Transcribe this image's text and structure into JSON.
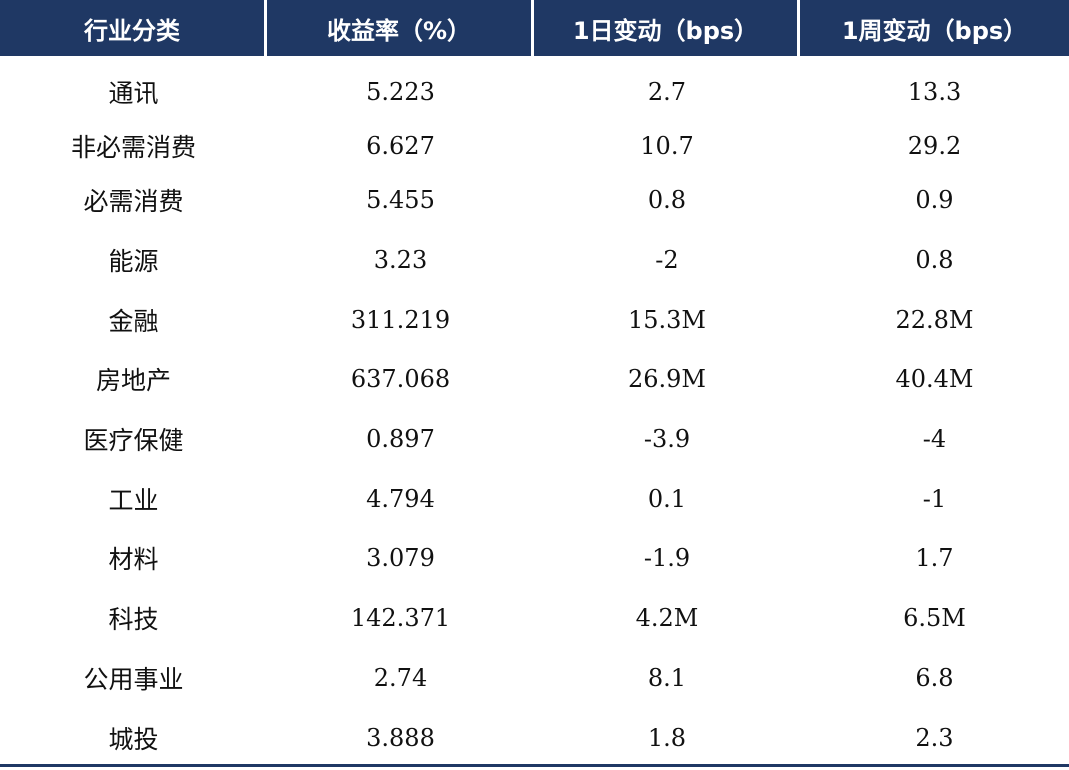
{
  "chart_data": {
    "type": "table",
    "columns": [
      "行业分类",
      "收益率（%）",
      "1日变动（bps）",
      "1周变动（bps）"
    ],
    "rows": [
      [
        "通讯",
        "5.223",
        "2.7",
        "13.3"
      ],
      [
        "非必需消费",
        "6.627",
        "10.7",
        "29.2"
      ],
      [
        "必需消费",
        "5.455",
        "0.8",
        "0.9"
      ],
      [
        "能源",
        "3.23",
        "-2",
        "0.8"
      ],
      [
        "金融",
        "311.219",
        "15.3M",
        "22.8M"
      ],
      [
        "房地产",
        "637.068",
        "26.9M",
        "40.4M"
      ],
      [
        "医疗保健",
        "0.897",
        "-3.9",
        "-4"
      ],
      [
        "工业",
        "4.794",
        "0.1",
        "-1"
      ],
      [
        "材料",
        "3.079",
        "-1.9",
        "1.7"
      ],
      [
        "科技",
        "142.371",
        "4.2M",
        "6.5M"
      ],
      [
        "公用事业",
        "2.74",
        "8.1",
        "6.8"
      ],
      [
        "城投",
        "3.888",
        "1.8",
        "2.3"
      ]
    ],
    "header_color": "#1f3864",
    "header_text_color": "#ffffff"
  }
}
